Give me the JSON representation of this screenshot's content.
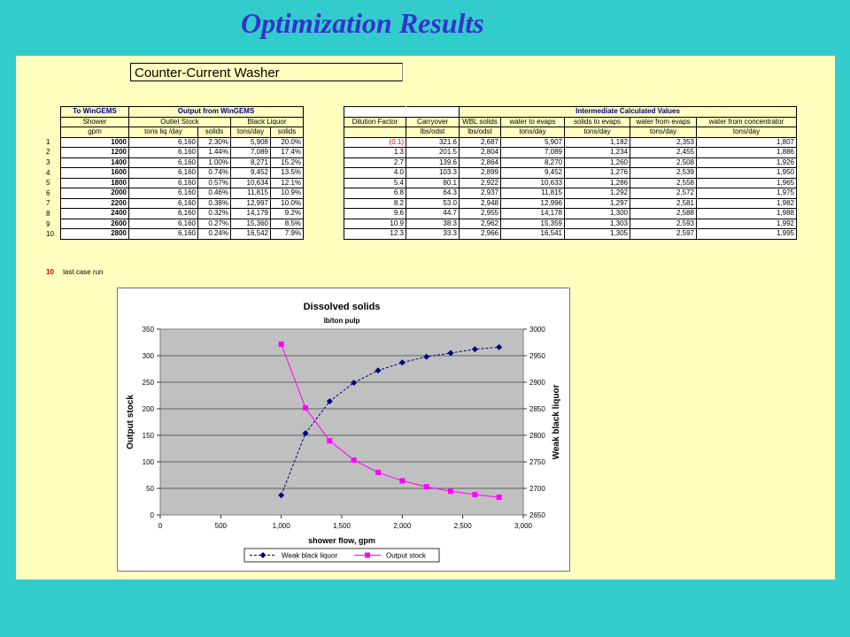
{
  "slide_title": "Optimization Results",
  "sheet_title": "Counter-Current Washer",
  "left_table": {
    "group_to": "To WinGEMS",
    "group_out": "Output from WinGEMS",
    "sub_shower": "Shower",
    "sub_outlet": "Outlet Stock",
    "sub_black": "Black Liquor",
    "units": [
      "gpm",
      "tons liq /day",
      "solids",
      "tons/day",
      "solids"
    ],
    "rows": [
      {
        "n": "1",
        "shower": "1000",
        "liq": "6,160",
        "solids": "2.30%",
        "bl_tons": "5,908",
        "bl_solids": "20.0%"
      },
      {
        "n": "2",
        "shower": "1200",
        "liq": "6,160",
        "solids": "1.44%",
        "bl_tons": "7,089",
        "bl_solids": "17.4%"
      },
      {
        "n": "3",
        "shower": "1400",
        "liq": "6,160",
        "solids": "1.00%",
        "bl_tons": "8,271",
        "bl_solids": "15.2%"
      },
      {
        "n": "4",
        "shower": "1600",
        "liq": "6,160",
        "solids": "0.74%",
        "bl_tons": "9,452",
        "bl_solids": "13.5%"
      },
      {
        "n": "5",
        "shower": "1800",
        "liq": "6,160",
        "solids": "0.57%",
        "bl_tons": "10,634",
        "bl_solids": "12.1%"
      },
      {
        "n": "6",
        "shower": "2000",
        "liq": "6,160",
        "solids": "0.46%",
        "bl_tons": "11,815",
        "bl_solids": "10.9%"
      },
      {
        "n": "7",
        "shower": "2200",
        "liq": "6,160",
        "solids": "0.38%",
        "bl_tons": "12,997",
        "bl_solids": "10.0%"
      },
      {
        "n": "8",
        "shower": "2400",
        "liq": "6,160",
        "solids": "0.32%",
        "bl_tons": "14,179",
        "bl_solids": "9.2%"
      },
      {
        "n": "9",
        "shower": "2600",
        "liq": "6,160",
        "solids": "0.27%",
        "bl_tons": "15,360",
        "bl_solids": "8.5%"
      },
      {
        "n": "10",
        "shower": "2800",
        "liq": "6,160",
        "solids": "0.24%",
        "bl_tons": "16,542",
        "bl_solids": "7.9%"
      }
    ]
  },
  "right_table": {
    "group": "Intermediate Calculated Values",
    "headers": [
      "Dilution Factor",
      "Carryover",
      "WBL solids",
      "water to evaps",
      "solids to evaps",
      "water from evaps",
      "water from concentrator"
    ],
    "units": [
      "",
      "lbs/odst",
      "lbs/odst",
      "tons/day",
      "tons/day",
      "tons/day",
      "tons/day"
    ],
    "rows": [
      [
        "(0.1)",
        "321.6",
        "2,687",
        "5,907",
        "1,182",
        "2,353",
        "1,807"
      ],
      [
        "1.3",
        "201.5",
        "2,804",
        "7,089",
        "1,234",
        "2,455",
        "1,886"
      ],
      [
        "2.7",
        "139.6",
        "2,864",
        "8,270",
        "1,260",
        "2,508",
        "1,926"
      ],
      [
        "4.0",
        "103.3",
        "2,899",
        "9,452",
        "1,276",
        "2,539",
        "1,950"
      ],
      [
        "5.4",
        "80.1",
        "2,922",
        "10,633",
        "1,286",
        "2,558",
        "1,965"
      ],
      [
        "6.8",
        "64.3",
        "2,937",
        "11,815",
        "1,292",
        "2,572",
        "1,975"
      ],
      [
        "8.2",
        "53.0",
        "2,948",
        "12,996",
        "1,297",
        "2,581",
        "1,982"
      ],
      [
        "9.6",
        "44.7",
        "2,955",
        "14,178",
        "1,300",
        "2,588",
        "1,988"
      ],
      [
        "10.9",
        "38.3",
        "2,962",
        "15,359",
        "1,303",
        "2,593",
        "1,992"
      ],
      [
        "12.3",
        "33.3",
        "2,966",
        "16,541",
        "1,305",
        "2,597",
        "1,995"
      ]
    ]
  },
  "last_case": {
    "value": "10",
    "label": "last case run"
  },
  "chart_data": {
    "type": "line",
    "title": "Dissolved solids",
    "subtitle": "lb/ton pulp",
    "xlabel": "shower flow, gpm",
    "ylabel": "Output stock",
    "y2label": "Weak black liquor",
    "xlim": [
      0,
      3000
    ],
    "ylim": [
      0,
      350
    ],
    "y2lim": [
      2650,
      3000
    ],
    "x_ticks": [
      0,
      500,
      1000,
      1500,
      2000,
      2500,
      3000
    ],
    "x_tick_labels": [
      "0",
      "500",
      "1,000",
      "1,500",
      "2,000",
      "2,500",
      "3,000"
    ],
    "y_ticks": [
      0,
      50,
      100,
      150,
      200,
      250,
      300,
      350
    ],
    "y2_ticks": [
      2650,
      2700,
      2750,
      2800,
      2850,
      2900,
      2950,
      3000
    ],
    "grid": true,
    "plot_background": "#c0c0c0",
    "legend_position": "bottom",
    "x": [
      1000,
      1200,
      1400,
      1600,
      1800,
      2000,
      2200,
      2400,
      2600,
      2800
    ],
    "series": [
      {
        "name": "Weak black liquor",
        "axis": "right",
        "color": "#000080",
        "marker": "diamond",
        "dash": true,
        "values": [
          2687,
          2804,
          2864,
          2899,
          2922,
          2937,
          2948,
          2955,
          2962,
          2966
        ]
      },
      {
        "name": "Output stock",
        "axis": "left",
        "color": "#ff00ff",
        "marker": "square",
        "dash": false,
        "values": [
          321.6,
          201.5,
          139.6,
          103.3,
          80.1,
          64.3,
          53.0,
          44.7,
          38.3,
          33.3
        ]
      }
    ]
  }
}
